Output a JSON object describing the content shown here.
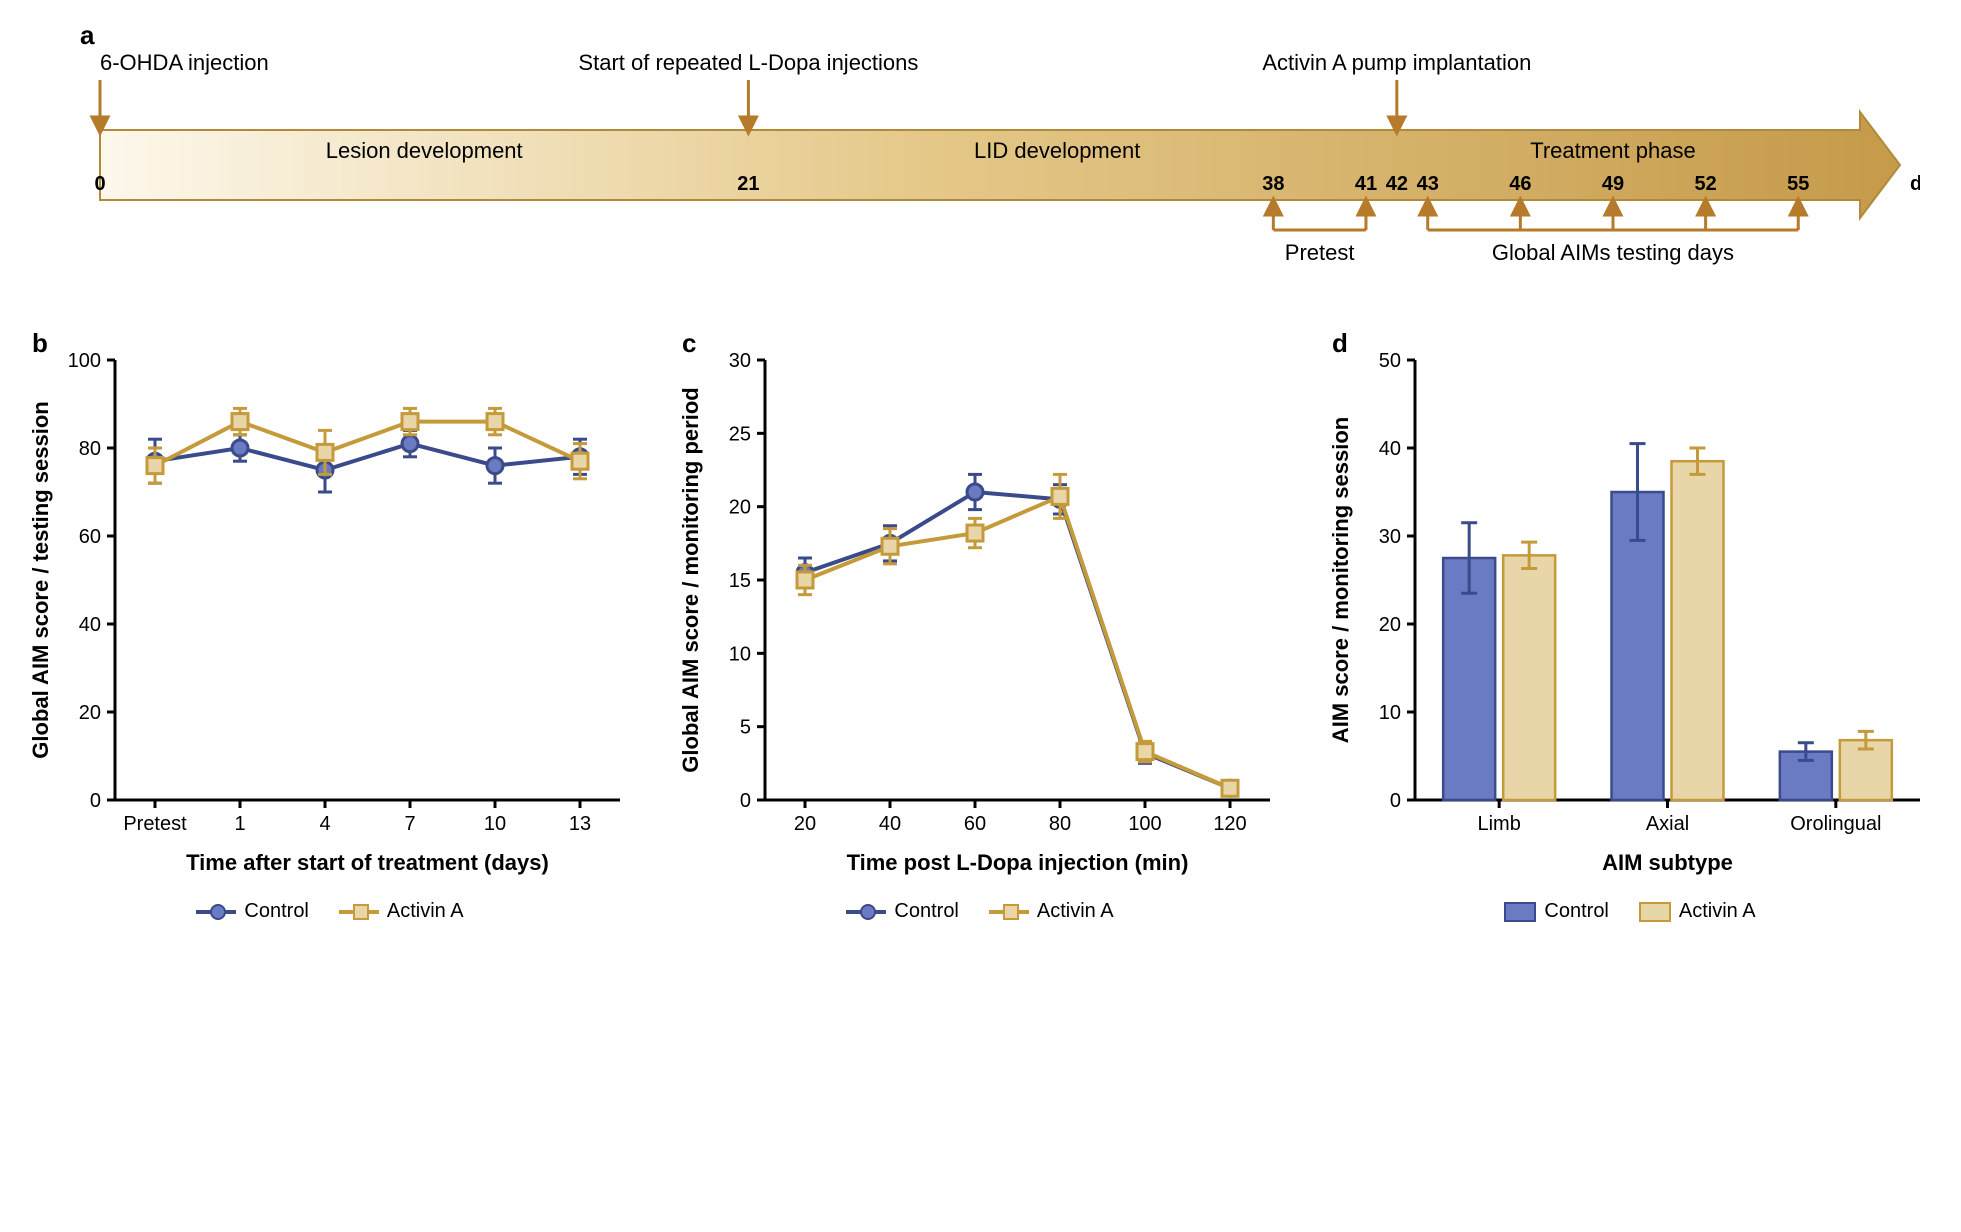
{
  "colors": {
    "control_line": "#3a4a8a",
    "control_fill": "#6a7bc4",
    "activin_line": "#c49a3a",
    "activin_fill": "#e8d5a8",
    "axis": "#000000",
    "timeline_border": "#b08a3a",
    "timeline_grad_start": "#fdf8ec",
    "timeline_grad_mid": "#e5c98a",
    "timeline_grad_end": "#c59a4a",
    "arrow_brown": "#b57a2a"
  },
  "panel_a": {
    "label": "a",
    "top_events": [
      {
        "x_day": 0,
        "text": "6-OHDA injection"
      },
      {
        "x_day": 21,
        "text": "Start of repeated L-Dopa injections"
      },
      {
        "x_day": 42,
        "text": "Activin A pump implantation"
      }
    ],
    "phases": [
      {
        "text": "Lesion development",
        "center_day": 10.5
      },
      {
        "text": "LID development",
        "center_day": 31
      },
      {
        "text": "Treatment phase",
        "center_day": 49
      }
    ],
    "day_ticks": [
      "0",
      "21",
      "38",
      "41",
      "42",
      "43",
      "46",
      "49",
      "52",
      "55"
    ],
    "day_tick_x": [
      0,
      21,
      38,
      41,
      42,
      43,
      46,
      49,
      52,
      55
    ],
    "days_label": "days",
    "pretest": {
      "label": "Pretest",
      "start_day": 38,
      "end_day": 41
    },
    "testing": {
      "label": "Global AIMs testing days",
      "days": [
        43,
        46,
        49,
        52,
        55
      ]
    }
  },
  "panel_b": {
    "label": "b",
    "type": "line",
    "x_categories": [
      "Pretest",
      "1",
      "4",
      "7",
      "10",
      "13"
    ],
    "x_label": "Time after start of treatment (days)",
    "y_label": "Global AIM score / testing session",
    "ylim": [
      0,
      100
    ],
    "ytick_step": 20,
    "series": [
      {
        "name": "Control",
        "color_line": "#3a4a8a",
        "color_fill": "#6a7bc4",
        "marker": "circle",
        "y": [
          77,
          80,
          75,
          81,
          76,
          78
        ],
        "err": [
          5,
          3,
          5,
          3,
          4,
          4
        ]
      },
      {
        "name": "Activin A",
        "color_line": "#c49a3a",
        "color_fill": "#e8d5a8",
        "marker": "square",
        "y": [
          76,
          86,
          79,
          86,
          86,
          77
        ],
        "err": [
          4,
          3,
          5,
          3,
          3,
          4
        ]
      }
    ],
    "legend": [
      "Control",
      "Activin A"
    ]
  },
  "panel_c": {
    "label": "c",
    "type": "line",
    "x_categories": [
      "20",
      "40",
      "60",
      "80",
      "100",
      "120"
    ],
    "x_label": "Time post L-Dopa injection (min)",
    "y_label": "Global AIM score / monitoring period",
    "ylim": [
      0,
      30
    ],
    "ytick_step": 5,
    "series": [
      {
        "name": "Control",
        "color_line": "#3a4a8a",
        "color_fill": "#6a7bc4",
        "marker": "circle",
        "y": [
          15.5,
          17.5,
          21.0,
          20.5,
          3.2,
          0.8
        ],
        "err": [
          1.0,
          1.2,
          1.2,
          1.0,
          0.7,
          0.5
        ]
      },
      {
        "name": "Activin A",
        "color_line": "#c49a3a",
        "color_fill": "#e8d5a8",
        "marker": "square",
        "y": [
          15.0,
          17.3,
          18.2,
          20.7,
          3.3,
          0.8
        ],
        "err": [
          1.0,
          1.2,
          1.0,
          1.5,
          0.7,
          0.5
        ]
      }
    ],
    "legend": [
      "Control",
      "Activin A"
    ]
  },
  "panel_d": {
    "label": "d",
    "type": "bar",
    "x_categories": [
      "Limb",
      "Axial",
      "Orolingual"
    ],
    "x_label": "AIM subtype",
    "y_label": "AIM score / monitoring session",
    "ylim": [
      0,
      50
    ],
    "ytick_step": 10,
    "bar_groups": [
      {
        "cat": "Limb",
        "control": {
          "v": 27.5,
          "err": 4.0
        },
        "activin": {
          "v": 27.8,
          "err": 1.5
        }
      },
      {
        "cat": "Axial",
        "control": {
          "v": 35.0,
          "err": 5.5
        },
        "activin": {
          "v": 38.5,
          "err": 1.5
        }
      },
      {
        "cat": "Orolingual",
        "control": {
          "v": 5.5,
          "err": 1.0
        },
        "activin": {
          "v": 6.8,
          "err": 1.0
        }
      }
    ],
    "legend": [
      "Control",
      "Activin A"
    ]
  },
  "fonts": {
    "panel_label_size": 26,
    "axis_label_size": 22,
    "tick_size": 20,
    "timeline_event_size": 22,
    "timeline_phase_size": 22,
    "timeline_tick_size": 20
  }
}
